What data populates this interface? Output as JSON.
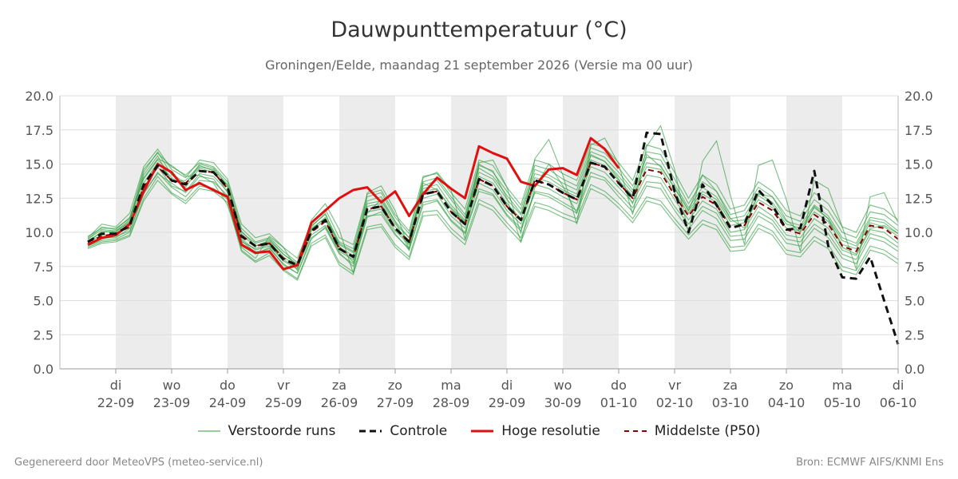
{
  "header": {
    "title": "Dauwpunttemperatuur (°C)",
    "subtitle": "Groningen/Eelde, maandag 21 september 2026 (Versie ma 00 uur)"
  },
  "footer": {
    "left": "Gegenereerd door MeteoVPS (meteo-service.nl)",
    "right": "Bron: ECMWF AIFS/KNMI Ens"
  },
  "legend": [
    {
      "key": "ensemble",
      "label": "Verstoorde runs"
    },
    {
      "key": "control",
      "label": "Controle"
    },
    {
      "key": "hires",
      "label": "Hoge resolutie"
    },
    {
      "key": "median",
      "label": "Middelste (P50)"
    }
  ],
  "colors": {
    "ensemble": "#2e9e3e",
    "control": "#111111",
    "hires": "#e01010",
    "median": "#8b0000",
    "shade": "#ececec",
    "grid": "#dddddd"
  },
  "chart_data": {
    "type": "line",
    "x_unit": "days since 2026-09-21 00:00",
    "xlim": [
      0,
      15
    ],
    "ylim": [
      0,
      20
    ],
    "yticks": [
      "0.0",
      "2.5",
      "5.0",
      "7.5",
      "10.0",
      "12.5",
      "15.0",
      "17.5",
      "20.0"
    ],
    "ytick_values": [
      0,
      2.5,
      5,
      7.5,
      10,
      12.5,
      15,
      17.5,
      20
    ],
    "xticks": [
      {
        "x": 1,
        "day": "di",
        "date": "22-09"
      },
      {
        "x": 2,
        "day": "wo",
        "date": "23-09"
      },
      {
        "x": 3,
        "day": "do",
        "date": "24-09"
      },
      {
        "x": 4,
        "day": "vr",
        "date": "25-09"
      },
      {
        "x": 5,
        "day": "za",
        "date": "26-09"
      },
      {
        "x": 6,
        "day": "zo",
        "date": "27-09"
      },
      {
        "x": 7,
        "day": "ma",
        "date": "28-09"
      },
      {
        "x": 8,
        "day": "di",
        "date": "29-09"
      },
      {
        "x": 9,
        "day": "wo",
        "date": "30-09"
      },
      {
        "x": 10,
        "day": "do",
        "date": "01-10"
      },
      {
        "x": 11,
        "day": "vr",
        "date": "02-10"
      },
      {
        "x": 12,
        "day": "za",
        "date": "03-10"
      },
      {
        "x": 13,
        "day": "zo",
        "date": "04-10"
      },
      {
        "x": 14,
        "day": "ma",
        "date": "05-10"
      },
      {
        "x": 15,
        "day": "di",
        "date": "06-10"
      }
    ],
    "shaded_days": [
      [
        1,
        2
      ],
      [
        3,
        4
      ],
      [
        5,
        6
      ],
      [
        7,
        8
      ],
      [
        9,
        10
      ],
      [
        11,
        12
      ],
      [
        13,
        14
      ]
    ],
    "series": [
      {
        "name": "Controle",
        "style": "control",
        "x": [
          0.5,
          0.75,
          1,
          1.25,
          1.5,
          1.75,
          2,
          2.25,
          2.5,
          2.75,
          3,
          3.25,
          3.5,
          3.75,
          4,
          4.25,
          4.5,
          4.75,
          5,
          5.25,
          5.5,
          5.75,
          6,
          6.25,
          6.5,
          6.75,
          7,
          7.25,
          7.5,
          7.75,
          8,
          8.25,
          8.5,
          8.75,
          9,
          9.25,
          9.5,
          9.75,
          10,
          10.25,
          10.5,
          10.75,
          11,
          11.25,
          11.5,
          11.75,
          12,
          12.25,
          12.5,
          12.75,
          13,
          13.25,
          13.5,
          13.75,
          14,
          14.25,
          14.5,
          14.75,
          15
        ],
        "y": [
          9.3,
          9.9,
          9.9,
          10.5,
          13.5,
          14.9,
          13.8,
          13.5,
          14.5,
          14.4,
          13.3,
          9.7,
          9.0,
          9.2,
          8.0,
          7.6,
          10.1,
          10.9,
          8.8,
          8.2,
          11.7,
          11.9,
          10.3,
          9.3,
          12.8,
          13.0,
          11.5,
          10.6,
          13.9,
          13.4,
          11.9,
          10.9,
          13.8,
          13.5,
          12.9,
          12.4,
          15.1,
          14.8,
          13.6,
          12.5,
          17.3,
          17.2,
          13.0,
          10.0,
          13.5,
          12.0,
          10.3,
          10.6,
          13.1,
          12.0,
          10.2,
          10.3,
          14.5,
          9.0,
          6.7,
          6.6,
          8.2,
          5.0,
          1.8
        ]
      },
      {
        "name": "Hoge resolutie",
        "style": "hires",
        "x": [
          0.5,
          0.75,
          1,
          1.25,
          1.5,
          1.75,
          2,
          2.25,
          2.5,
          2.75,
          3,
          3.25,
          3.5,
          3.75,
          4,
          4.25,
          4.5,
          4.75,
          5,
          5.25,
          5.5,
          5.75,
          6,
          6.25,
          6.5,
          6.75,
          7,
          7.25,
          7.5,
          7.75,
          8,
          8.25,
          8.5,
          8.75,
          9,
          9.25,
          9.5,
          9.75,
          10
        ],
        "y": [
          9.1,
          9.6,
          9.8,
          10.6,
          13.0,
          15.0,
          14.4,
          13.1,
          13.6,
          13.1,
          12.6,
          9.1,
          8.5,
          8.6,
          7.3,
          7.6,
          10.7,
          11.6,
          12.5,
          13.1,
          13.3,
          12.2,
          13.0,
          11.2,
          12.8,
          14.0,
          13.2,
          12.5,
          16.3,
          15.8,
          15.4,
          13.7,
          13.4,
          14.6,
          14.7,
          14.2,
          16.9,
          16.1,
          14.7
        ]
      },
      {
        "name": "Middelste (P50)",
        "style": "median",
        "x": [
          0.5,
          0.75,
          1,
          1.25,
          1.5,
          1.75,
          2,
          2.25,
          2.5,
          2.75,
          3,
          3.25,
          3.5,
          3.75,
          4,
          4.25,
          4.5,
          4.75,
          5,
          5.25,
          5.5,
          5.75,
          6,
          6.25,
          6.5,
          6.75,
          7,
          7.25,
          7.5,
          7.75,
          8,
          8.25,
          8.5,
          8.75,
          9,
          9.25,
          9.5,
          9.75,
          10,
          10.25,
          10.5,
          10.75,
          11,
          11.25,
          11.5,
          11.75,
          12,
          12.25,
          12.5,
          12.75,
          13,
          13.25,
          13.5,
          13.75,
          14,
          14.25,
          14.5,
          14.75,
          15
        ],
        "y": [
          9.3,
          9.7,
          9.9,
          10.4,
          13.3,
          14.8,
          13.8,
          13.6,
          14.5,
          14.4,
          13.2,
          9.8,
          9.0,
          9.2,
          8.1,
          7.6,
          10.0,
          10.8,
          8.8,
          8.2,
          11.7,
          11.9,
          10.3,
          9.3,
          12.8,
          13.0,
          11.5,
          10.6,
          13.9,
          13.4,
          11.9,
          10.9,
          13.8,
          13.5,
          12.9,
          12.4,
          15.1,
          14.8,
          13.6,
          12.5,
          14.6,
          14.4,
          12.7,
          11.2,
          12.6,
          12.0,
          10.4,
          10.5,
          12.2,
          11.6,
          10.2,
          9.9,
          11.3,
          10.6,
          9.0,
          8.6,
          10.5,
          10.3,
          9.5
        ]
      }
    ],
    "ensemble": {
      "name": "Verstoorde runs",
      "x_start": 0.5,
      "x_step": 0.25,
      "members": [
        [
          9.2,
          10.1,
          10.0,
          10.8,
          14.4,
          15.9,
          14.2,
          13.5,
          15.0,
          14.7,
          13.5,
          10.1,
          9.0,
          9.4,
          8.4,
          7.6,
          10.2,
          11.1,
          9.1,
          8.5,
          12.3,
          12.6,
          10.8,
          9.6,
          13.4,
          13.8,
          12.4,
          11.1,
          14.7,
          14.1,
          12.7,
          11.4,
          14.6,
          14.2,
          13.6,
          13.1,
          15.9,
          15.5,
          14.4,
          13.1,
          15.5,
          15.3,
          13.5,
          11.8,
          13.3,
          12.6,
          11.0,
          11.2,
          12.9,
          12.2,
          10.8,
          10.5,
          12.0,
          11.2,
          9.6,
          9.2,
          11.1,
          10.9,
          10.1
        ],
        [
          9.0,
          9.5,
          9.7,
          10.1,
          12.8,
          14.4,
          13.3,
          12.6,
          13.8,
          13.7,
          12.7,
          9.4,
          8.5,
          8.8,
          7.7,
          7.0,
          9.6,
          10.3,
          8.4,
          7.7,
          11.2,
          11.3,
          9.8,
          8.8,
          12.2,
          12.4,
          10.9,
          10.0,
          13.2,
          12.8,
          11.3,
          10.3,
          13.0,
          12.8,
          12.2,
          11.6,
          14.4,
          14.0,
          12.9,
          11.8,
          13.7,
          13.6,
          11.9,
          10.6,
          11.9,
          11.4,
          9.7,
          9.8,
          11.5,
          10.9,
          9.5,
          9.3,
          10.6,
          9.9,
          8.4,
          8.0,
          9.9,
          9.6,
          8.9
        ],
        [
          9.5,
          10.4,
          10.2,
          11.1,
          14.0,
          15.4,
          14.9,
          14.1,
          14.2,
          13.6,
          12.0,
          8.9,
          8.1,
          9.7,
          8.9,
          7.2,
          10.9,
          12.1,
          10.2,
          7.0,
          12.9,
          13.4,
          11.6,
          8.8,
          14.0,
          14.4,
          13.1,
          9.5,
          15.1,
          15.3,
          13.3,
          9.9,
          15.4,
          16.8,
          14.2,
          10.6,
          16.4,
          16.9,
          15.0,
          11.3,
          16.3,
          17.8,
          14.6,
          9.9,
          15.2,
          16.7,
          12.7,
          9.1,
          14.9,
          15.3,
          12.4,
          8.6,
          13.8,
          13.2,
          10.4,
          7.3,
          12.6,
          12.9,
          10.7
        ],
        [
          8.9,
          9.3,
          9.4,
          9.8,
          12.5,
          14.1,
          12.9,
          12.3,
          13.4,
          13.2,
          12.4,
          8.7,
          7.9,
          8.5,
          7.3,
          6.6,
          9.2,
          9.8,
          7.8,
          7.1,
          10.4,
          10.6,
          9.1,
          8.2,
          11.5,
          11.6,
          10.3,
          9.4,
          12.4,
          11.9,
          10.7,
          9.6,
          12.2,
          11.9,
          11.4,
          11.0,
          13.5,
          13.0,
          12.1,
          11.0,
          12.6,
          12.3,
          11.0,
          9.8,
          10.9,
          10.5,
          8.9,
          9.0,
          10.6,
          10.1,
          8.7,
          8.5,
          9.7,
          9.1,
          7.5,
          7.2,
          9.0,
          8.7,
          8.0
        ],
        [
          9.6,
          10.6,
          10.4,
          11.4,
          14.8,
          16.1,
          14.6,
          14.0,
          15.3,
          15.1,
          13.9,
          10.6,
          9.6,
          9.9,
          8.9,
          8.1,
          10.7,
          11.7,
          9.6,
          9.1,
          12.8,
          13.1,
          11.3,
          10.1,
          14.1,
          14.3,
          12.9,
          11.7,
          15.3,
          14.9,
          13.3,
          12.0,
          15.3,
          15.0,
          14.3,
          13.8,
          16.5,
          16.2,
          15.1,
          13.8,
          16.4,
          16.1,
          14.4,
          12.5,
          14.2,
          13.5,
          11.7,
          12.0,
          13.7,
          13.0,
          11.6,
          11.2,
          12.9,
          12.1,
          10.4,
          10.0,
          12.0,
          11.7,
          10.9
        ],
        [
          9.1,
          9.6,
          9.6,
          10.3,
          13.3,
          14.8,
          13.4,
          13.0,
          14.3,
          14.1,
          13.0,
          9.5,
          8.7,
          9.0,
          7.9,
          7.3,
          9.8,
          10.5,
          8.6,
          8.0,
          11.5,
          11.7,
          10.1,
          9.1,
          12.5,
          12.8,
          11.2,
          10.3,
          13.6,
          13.1,
          11.6,
          10.6,
          13.5,
          13.2,
          12.6,
          12.1,
          14.8,
          14.4,
          13.3,
          12.2,
          14.2,
          14.0,
          12.4,
          10.9,
          12.3,
          11.7,
          10.0,
          10.2,
          11.9,
          11.2,
          9.8,
          9.6,
          11.0,
          10.3,
          8.7,
          8.3,
          10.2,
          10.0,
          9.2
        ],
        [
          9.3,
          9.8,
          9.9,
          10.5,
          13.6,
          15.1,
          14.0,
          13.3,
          14.7,
          14.4,
          13.3,
          9.8,
          9.0,
          9.3,
          8.2,
          7.5,
          10.1,
          10.9,
          8.9,
          8.3,
          11.9,
          12.1,
          10.4,
          9.4,
          13.0,
          13.2,
          11.7,
          10.7,
          14.1,
          13.6,
          12.1,
          11.0,
          14.0,
          13.7,
          13.1,
          12.6,
          15.3,
          14.9,
          13.8,
          12.7,
          14.8,
          14.6,
          12.9,
          11.4,
          12.8,
          12.2,
          10.5,
          10.7,
          12.4,
          11.8,
          10.3,
          10.1,
          11.5,
          10.8,
          9.1,
          8.8,
          10.7,
          10.4,
          9.7
        ],
        [
          9.4,
          10.0,
          10.1,
          10.7,
          14.2,
          15.6,
          13.7,
          13.8,
          14.9,
          14.5,
          12.9,
          9.3,
          8.8,
          9.1,
          8.0,
          7.4,
          10.4,
          11.4,
          9.0,
          7.8,
          11.4,
          12.4,
          10.8,
          8.7,
          13.6,
          13.1,
          11.8,
          10.8,
          14.9,
          14.5,
          12.5,
          9.3,
          13.3,
          15.0,
          13.4,
          11.4,
          15.7,
          15.2,
          13.9,
          12.1,
          15.7,
          14.8,
          13.3,
          11.6,
          14.2,
          13.0,
          11.0,
          10.3,
          12.8,
          12.6,
          10.9,
          10.0,
          11.9,
          11.0,
          8.9,
          8.4,
          10.3,
          10.5,
          9.9
        ],
        [
          9.0,
          9.4,
          9.5,
          10.0,
          12.9,
          14.3,
          13.6,
          12.9,
          14.1,
          13.9,
          12.5,
          9.0,
          8.4,
          8.9,
          7.6,
          7.0,
          9.5,
          10.4,
          8.5,
          7.5,
          11.1,
          11.5,
          9.9,
          8.7,
          12.0,
          12.3,
          10.8,
          9.9,
          13.0,
          12.7,
          11.2,
          10.1,
          12.9,
          12.6,
          12.0,
          11.4,
          14.1,
          13.8,
          12.6,
          11.5,
          13.4,
          13.2,
          11.6,
          10.2,
          11.6,
          11.0,
          9.4,
          9.5,
          11.2,
          10.6,
          9.2,
          9.0,
          10.3,
          9.6,
          8.1,
          7.7,
          9.6,
          9.3,
          8.6
        ],
        [
          9.7,
          10.3,
          10.3,
          11.0,
          14.6,
          15.8,
          14.8,
          14.2,
          15.1,
          14.8,
          13.7,
          10.3,
          9.3,
          9.6,
          8.6,
          7.8,
          10.5,
          11.3,
          9.3,
          8.8,
          12.6,
          12.9,
          11.1,
          9.9,
          13.7,
          14.0,
          12.6,
          11.3,
          15.0,
          14.4,
          13.0,
          11.7,
          14.9,
          14.6,
          13.9,
          13.4,
          16.2,
          15.8,
          14.7,
          13.4,
          15.9,
          15.7,
          13.9,
          12.1,
          13.7,
          13.0,
          11.3,
          11.6,
          13.3,
          12.6,
          11.2,
          10.8,
          12.4,
          11.6,
          10.0,
          9.6,
          11.5,
          11.3,
          10.5
        ],
        [
          8.8,
          9.2,
          9.3,
          9.7,
          12.3,
          13.8,
          12.8,
          12.1,
          13.2,
          13.0,
          12.2,
          8.6,
          7.8,
          8.3,
          7.2,
          6.5,
          9.0,
          9.6,
          7.6,
          6.9,
          10.2,
          10.4,
          8.9,
          8.0,
          11.2,
          11.3,
          10.0,
          9.1,
          12.1,
          11.6,
          10.4,
          9.3,
          11.9,
          11.6,
          11.1,
          10.7,
          13.2,
          12.7,
          11.8,
          10.7,
          12.3,
          12.0,
          10.7,
          9.5,
          10.6,
          10.2,
          8.6,
          8.7,
          10.3,
          9.8,
          8.4,
          8.2,
          9.4,
          8.8,
          7.2,
          6.9,
          8.7,
          8.4,
          7.7
        ],
        [
          9.5,
          10.2,
          10.1,
          10.9,
          13.9,
          15.3,
          14.3,
          13.6,
          14.8,
          14.6,
          13.4,
          10.0,
          9.2,
          9.5,
          8.4,
          7.7,
          10.3,
          11.0,
          9.2,
          8.6,
          12.1,
          12.3,
          10.6,
          9.6,
          13.2,
          13.5,
          12.0,
          10.9,
          14.4,
          13.9,
          12.4,
          11.3,
          14.3,
          14.0,
          13.3,
          12.8,
          15.6,
          15.2,
          14.1,
          12.9,
          15.1,
          14.9,
          13.2,
          11.6,
          13.0,
          12.4,
          10.8,
          10.9,
          12.7,
          12.0,
          10.6,
          10.3,
          11.8,
          11.0,
          9.4,
          9.0,
          10.9,
          10.7,
          9.9
        ]
      ]
    }
  }
}
